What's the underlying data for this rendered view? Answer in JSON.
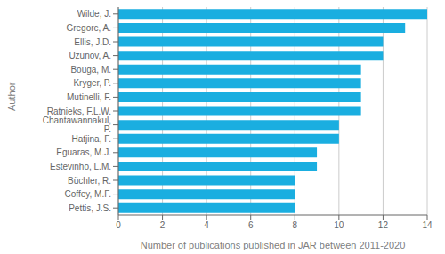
{
  "chart_data": {
    "type": "bar",
    "orientation": "horizontal",
    "categories": [
      "Pettis, J.S.",
      "Coffey, M.F.",
      "Büchler, R.",
      "Estevinho, L.M.",
      "Eguaras, M.J.",
      "Hatjina, F.",
      "Chantawannakul, P.",
      "Ratnieks, F.L.W.",
      "Mutinelli, F.",
      "Kryger, P.",
      "Bouga, M.",
      "Uzunov, A.",
      "Ellis, J.D.",
      "Gregorc, A.",
      "Wilde, J."
    ],
    "values": [
      8,
      8,
      8,
      9,
      9,
      10,
      10,
      11,
      11,
      11,
      11,
      12,
      12,
      13,
      14
    ],
    "color": "#1aaee0",
    "xlabel": "Number of publications published in JAR between 2011-2020",
    "ylabel": "Author",
    "xlim": [
      0,
      14
    ],
    "xticks": [
      0,
      2,
      4,
      6,
      8,
      10,
      12,
      14
    ],
    "grid": true
  }
}
